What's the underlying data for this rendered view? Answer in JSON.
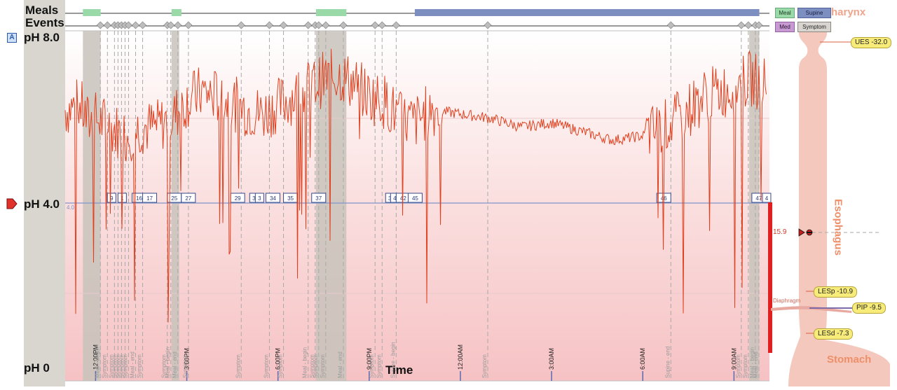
{
  "axis": {
    "meals_label": "Meals",
    "events_label": "Events",
    "ph_high_label": "pH 8.0",
    "ph_mid_label": "pH 4.0",
    "ph_low_label": "pH 0",
    "ph_line_value": "4.0",
    "time_label": "Time",
    "a_badge": "A"
  },
  "legend": {
    "meal": "Meal",
    "supine": "Supine",
    "med": "Med",
    "symptom": "Symptom"
  },
  "anatomy": {
    "pharynx": "harynx",
    "esophagus": "Esophagus",
    "stomach": "Stomach",
    "diaphragm": "Diaphragm",
    "ues": "UES -32.0",
    "lesp": "LESp -10.9",
    "pip": "PIP  -9.5",
    "lesd": "LESd  -7.3",
    "sensor_value": "15.9"
  },
  "colors": {
    "trace": "#e0401e",
    "meal_bar": "#9ad9a8",
    "supine_bar": "#7d8fc0",
    "med_box": "#c79ad3",
    "grey_band": "#c8c3bb",
    "ph4_line": "#7f95c9",
    "anatomy": "#f4c8bc",
    "label_yellow": "#f7ec7a"
  },
  "chart_data": {
    "type": "line",
    "title": "",
    "xlabel": "Time",
    "ylabel": "pH",
    "ylim": [
      0,
      8
    ],
    "x_ticks": [
      "12:00PM",
      "3:00PM",
      "6:00PM",
      "9:00PM",
      "12:00AM",
      "3:00AM",
      "6:00AM",
      "9:00AM"
    ],
    "threshold": 4.0,
    "supine_period": {
      "start": "10:30PM",
      "end": "9:50AM"
    },
    "meal_periods": [
      {
        "start": "11:35AM",
        "end": "12:10PM"
      },
      {
        "start": "2:30PM",
        "end": "2:45PM"
      },
      {
        "start": "7:15PM",
        "end": "8:15PM"
      },
      {
        "start": "9:30AM",
        "end": "9:50AM"
      }
    ],
    "event_labels": [
      "Meal - begin",
      "Symptom",
      "Symptom",
      "Symptom",
      "Symptom",
      "Symptom",
      "Symptom",
      "Meal - end",
      "Symptom",
      "Symptom",
      "Meal - begin",
      "Meal - end",
      "Symptom",
      "Symptom",
      "Symptom",
      "Symptom",
      "Meal - begin",
      "Symptom",
      "Symptom",
      "Symptom",
      "Meal - end",
      "Symptom",
      "Symptom",
      "Supine - begin",
      "Symptom",
      "Supine - end",
      "Symptom",
      "Symptom",
      "Meal - begin",
      "Meal - end"
    ],
    "episode_numbers": [
      "9",
      "1",
      "16",
      "17",
      "25",
      "27",
      "29",
      "3",
      "3",
      "34",
      "35",
      "37",
      "3",
      "4",
      "42",
      "45",
      "46",
      "47",
      "4"
    ],
    "series": [
      {
        "name": "",
        "x": [
          "11:00AM",
          "11:30AM",
          "11:45AM",
          "12:00PM",
          "12:30PM",
          "1:00PM",
          "1:30PM",
          "2:00PM",
          "2:30PM",
          "3:00PM",
          "3:30PM",
          "4:00PM",
          "5:00PM",
          "5:30PM",
          "6:00PM",
          "6:30PM",
          "7:00PM",
          "7:30PM",
          "8:00PM",
          "8:30PM",
          "9:00PM",
          "9:30PM",
          "10:00PM",
          "10:30PM",
          "11:00PM",
          "12:00AM",
          "1:00AM",
          "2:00AM",
          "3:00AM",
          "4:00AM",
          "5:00AM",
          "6:00AM",
          "7:00AM",
          "8:00AM",
          "9:00AM",
          "9:30AM",
          "10:00AM"
        ],
        "y": [
          6.2,
          6.3,
          5.9,
          6.0,
          5.8,
          5.6,
          5.8,
          5.8,
          6.0,
          6.4,
          6.6,
          6.5,
          6.2,
          6.1,
          6.3,
          6.5,
          6.7,
          6.9,
          7.0,
          6.8,
          6.5,
          6.4,
          6.0,
          5.9,
          6.2,
          6.1,
          6.0,
          5.8,
          5.9,
          5.7,
          5.5,
          5.6,
          5.9,
          6.5,
          6.7,
          6.9,
          6.8
        ]
      }
    ]
  }
}
